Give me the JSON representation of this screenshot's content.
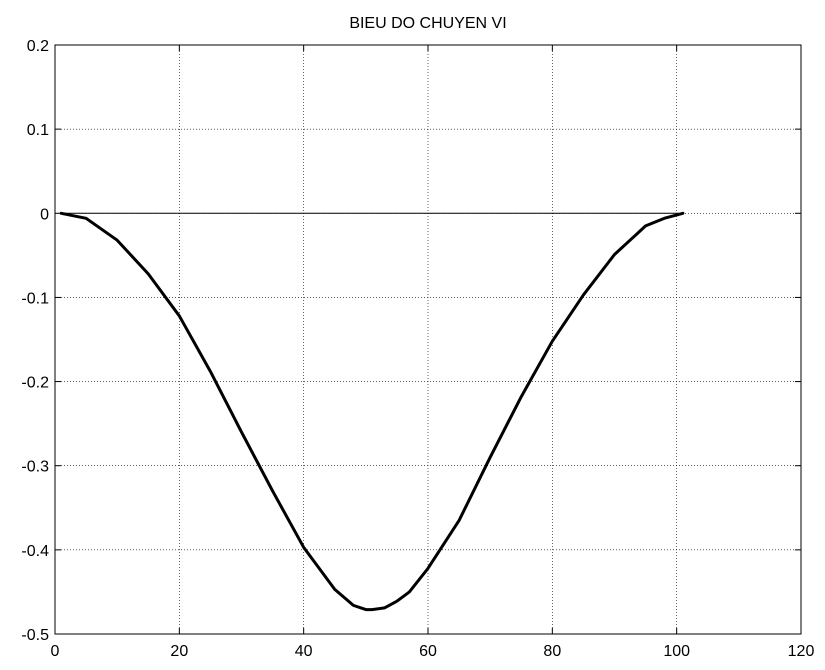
{
  "chart_data": {
    "type": "line",
    "title": "BIEU DO CHUYEN VI",
    "xlabel": "",
    "ylabel": "",
    "xlim": [
      0,
      120
    ],
    "ylim": [
      -0.5,
      0.2
    ],
    "grid": true,
    "legend": "none",
    "x_ticks": [
      0,
      20,
      40,
      60,
      80,
      100,
      120
    ],
    "y_ticks": [
      -0.5,
      -0.4,
      -0.3,
      -0.2,
      -0.1,
      0,
      0.1,
      0.2
    ],
    "x_tick_labels": [
      "0",
      "20",
      "40",
      "60",
      "80",
      "100",
      "120"
    ],
    "y_tick_labels": [
      "-0.5",
      "-0.4",
      "-0.3",
      "-0.2",
      "-0.1",
      "0",
      "0.1",
      "0.2"
    ],
    "series": [
      {
        "color": "#000000",
        "x": [
          1,
          5,
          10,
          15,
          20,
          25,
          30,
          35,
          40,
          45,
          48,
          50,
          51,
          53,
          55,
          57,
          60,
          65,
          70,
          75,
          80,
          85,
          90,
          95,
          98,
          101
        ],
        "y": [
          0,
          -0.006,
          -0.032,
          -0.072,
          -0.122,
          -0.188,
          -0.26,
          -0.33,
          -0.397,
          -0.447,
          -0.466,
          -0.471,
          -0.471,
          -0.469,
          -0.461,
          -0.45,
          -0.422,
          -0.365,
          -0.29,
          -0.218,
          -0.152,
          -0.097,
          -0.049,
          -0.015,
          -0.006,
          0
        ]
      },
      {
        "color": "#000000",
        "x": [
          1,
          101
        ],
        "y": [
          0,
          0
        ]
      }
    ]
  }
}
